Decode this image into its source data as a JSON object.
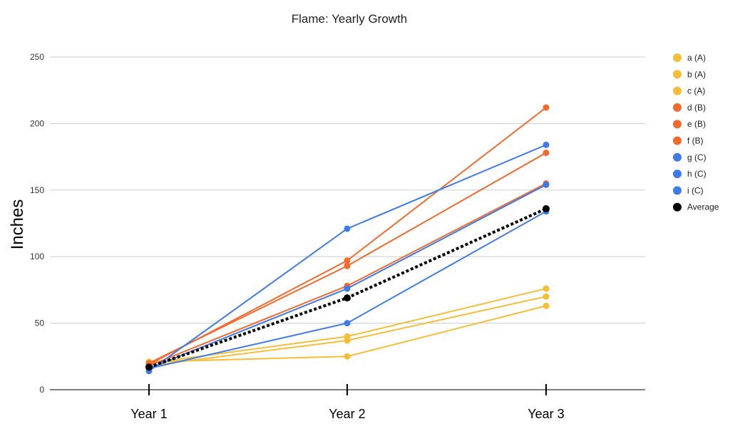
{
  "chart_data": {
    "type": "line",
    "title": "Flame: Yearly Growth",
    "xlabel": "",
    "ylabel": "Inches",
    "categories": [
      "Year 1",
      "Year 2",
      "Year 3"
    ],
    "ylim": [
      0,
      250
    ],
    "yticks": [
      0,
      50,
      100,
      150,
      200,
      250
    ],
    "grid": true,
    "legend_position": "right",
    "series": [
      {
        "name": "a (A)",
        "values": [
          20,
          40,
          76
        ],
        "color": "#F6BE37",
        "style": "solid"
      },
      {
        "name": "b (A)",
        "values": [
          18,
          37,
          70
        ],
        "color": "#F6BE37",
        "style": "solid"
      },
      {
        "name": "c (A)",
        "values": [
          21,
          25,
          63
        ],
        "color": "#F6BE37",
        "style": "solid"
      },
      {
        "name": "d (B)",
        "values": [
          19,
          97,
          212
        ],
        "color": "#F26A2C",
        "style": "solid"
      },
      {
        "name": "e (B)",
        "values": [
          20,
          93,
          178
        ],
        "color": "#F26A2C",
        "style": "solid"
      },
      {
        "name": "f (B)",
        "values": [
          18,
          78,
          155
        ],
        "color": "#F26A2C",
        "style": "solid"
      },
      {
        "name": "g (C)",
        "values": [
          14,
          121,
          184
        ],
        "color": "#3F7BE8",
        "style": "solid"
      },
      {
        "name": "h (C)",
        "values": [
          16,
          76,
          154
        ],
        "color": "#3F7BE8",
        "style": "solid"
      },
      {
        "name": "i (C)",
        "values": [
          16,
          50,
          134
        ],
        "color": "#3F7BE8",
        "style": "solid"
      },
      {
        "name": "Average",
        "values": [
          17,
          69,
          136
        ],
        "color": "#000000",
        "style": "dotted"
      }
    ]
  }
}
